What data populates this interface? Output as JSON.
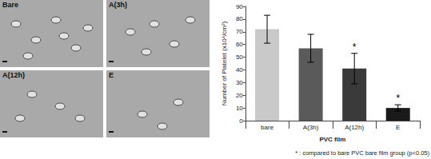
{
  "image_panels": [
    "Bare",
    "A(3h)",
    "A(12h)",
    "E"
  ],
  "chart_data": {
    "type": "bar",
    "categories": [
      "bare",
      "A(3h)",
      "A(12h)",
      "E"
    ],
    "values": [
      72,
      57,
      41,
      10
    ],
    "errors": [
      11,
      11,
      12,
      2.5
    ],
    "colors": [
      "#c9c9c9",
      "#5a5a5a",
      "#3a3a3a",
      "#1a1a1a"
    ],
    "ylabel": "Number of Platelet (x10⁴/cm²)",
    "xlabel": "PVC film",
    "ylim": [
      0,
      90
    ],
    "yticks": [
      0,
      10,
      20,
      30,
      40,
      50,
      60,
      70,
      80,
      90
    ],
    "grid": false,
    "annotations": [
      {
        "text": "*",
        "category": "A(12h)"
      },
      {
        "text": "*",
        "category": "E"
      }
    ],
    "footnote": "* : compared to bare PVC bare film group (p<0.05)"
  }
}
